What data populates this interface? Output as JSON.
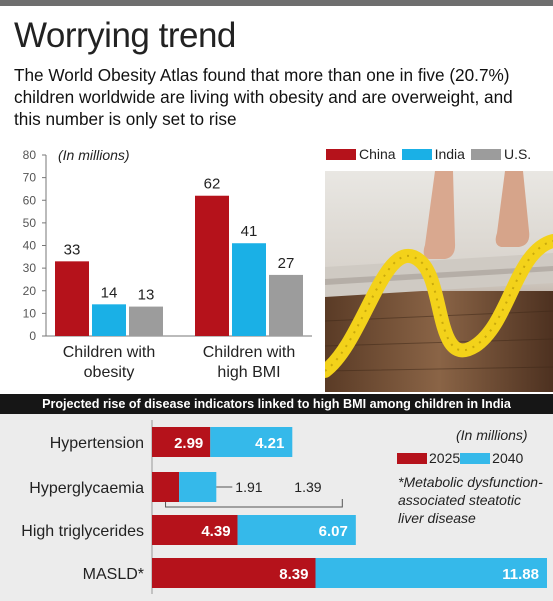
{
  "header": {
    "title": "Worrying trend",
    "subtitle": "The World Obesity Atlas found that more than one in five (20.7%) children worldwide are living with obesity and are overweight, and this number is only set to rise"
  },
  "colors": {
    "china": "#b5121b",
    "india": "#1ab0e6",
    "us": "#9c9c9c",
    "y2025": "#b5121b",
    "y2040": "#35b9ea"
  },
  "chart_data": [
    {
      "type": "bar",
      "unit_label": "(In millions)",
      "categories": [
        "Children with obesity",
        "Children with high BMI"
      ],
      "category_lines": [
        [
          "Children with",
          "obesity"
        ],
        [
          "Children with",
          "high BMI"
        ]
      ],
      "series": [
        {
          "name": "China",
          "values": [
            33,
            62
          ]
        },
        {
          "name": "India",
          "values": [
            14,
            41
          ]
        },
        {
          "name": "U.S.",
          "values": [
            13,
            27
          ]
        }
      ],
      "ylim": [
        0,
        80
      ],
      "yticks": [
        "0",
        "10",
        "20",
        "30",
        "40",
        "50",
        "60",
        "70",
        "80"
      ],
      "legend_position": "top-right"
    },
    {
      "type": "bar",
      "orientation": "horizontal-stacked",
      "title": "Projected rise of disease indicators linked to high BMI among children in India",
      "unit_label": "(In millions)",
      "categories": [
        "Hypertension",
        "Hyperglycaemia",
        "High triglycerides",
        "MASLD*"
      ],
      "series": [
        {
          "name": "2025",
          "values": [
            2.99,
            1.39,
            4.39,
            8.39
          ]
        },
        {
          "name": "2040",
          "values": [
            4.21,
            1.91,
            6.07,
            11.88
          ]
        }
      ],
      "labels_2025": [
        "2.99",
        "1.39",
        "4.39",
        "8.39"
      ],
      "labels_2040": [
        "4.21",
        "1.91",
        "6.07",
        "11.88"
      ],
      "footnote": "*Metabolic dysfunction-associated steatotic liver disease",
      "legend_position": "right"
    }
  ]
}
